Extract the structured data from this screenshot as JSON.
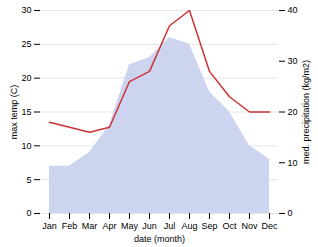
{
  "chart_data": {
    "type": "area",
    "categories": [
      "Jan",
      "Feb",
      "Mar",
      "Apr",
      "May",
      "Jun",
      "Jul",
      "Aug",
      "Sep",
      "Oct",
      "Nov",
      "Dec"
    ],
    "series": [
      {
        "type": "area",
        "color": "#ccd4f0",
        "values": [
          7,
          7,
          9,
          13,
          22,
          23,
          26,
          25,
          18,
          15,
          10,
          8
        ]
      },
      {
        "type": "line",
        "color": "#cc3333",
        "axis": "y2",
        "values": [
          18,
          17,
          16,
          17,
          26,
          28,
          37,
          40,
          28,
          23,
          20,
          20
        ]
      }
    ],
    "xlabel": "date (month)",
    "ylabel": "max temp (C)",
    "y2label": "med. precipitation (kg/m2)",
    "ylim": [
      0,
      30
    ],
    "yticks": [
      0,
      5,
      10,
      15,
      20,
      25,
      30
    ],
    "y2lim": [
      0,
      40
    ],
    "y2ticks": [
      0,
      10,
      20,
      30,
      40
    ],
    "grid": true
  }
}
